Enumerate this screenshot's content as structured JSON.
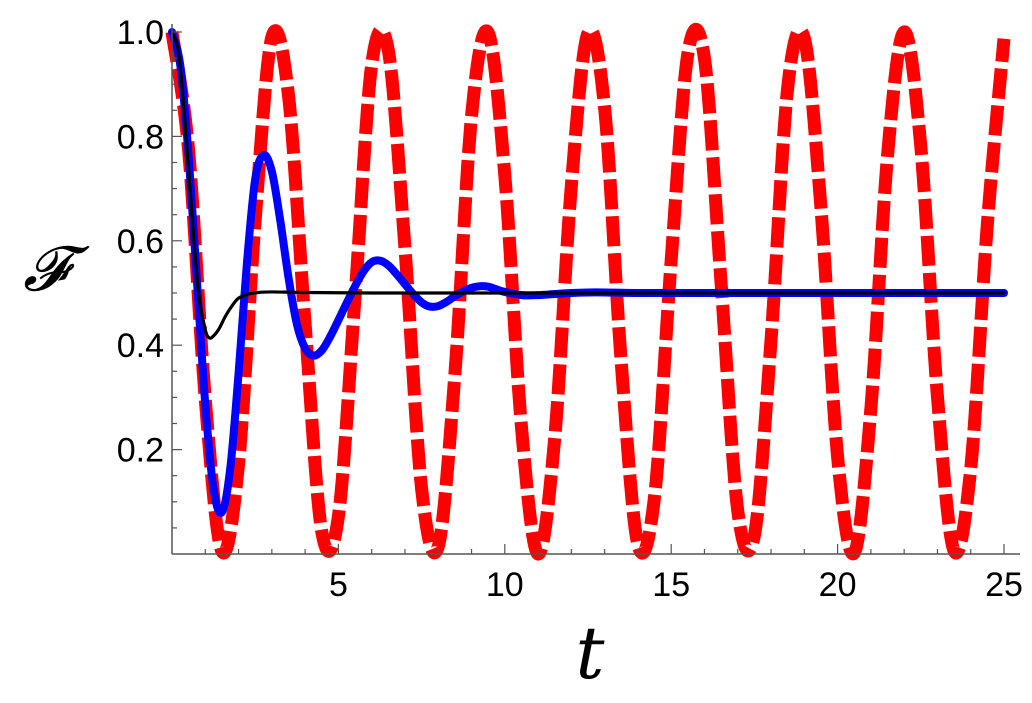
{
  "chart_data": {
    "type": "line",
    "title": "",
    "xlabel": "t",
    "ylabel": "𝓕",
    "xlim": [
      0,
      25
    ],
    "ylim": [
      0,
      1.0
    ],
    "grid": false,
    "legend": "none",
    "x_ticks": [
      {
        "value": 5,
        "label": "5"
      },
      {
        "value": 10,
        "label": "10"
      },
      {
        "value": 15,
        "label": "15"
      },
      {
        "value": 20,
        "label": "20"
      },
      {
        "value": 25,
        "label": "25"
      }
    ],
    "y_ticks": [
      {
        "value": 0.2,
        "label": "0.2"
      },
      {
        "value": 0.4,
        "label": "0.4"
      },
      {
        "value": 0.6,
        "label": "0.6"
      },
      {
        "value": 0.8,
        "label": "0.8"
      },
      {
        "value": 1.0,
        "label": "1.0"
      }
    ],
    "series": [
      {
        "color": "#ff0000",
        "style": "dashed",
        "x": [
          0,
          0.5,
          1,
          1.5,
          2,
          2.5,
          3,
          3.5,
          4,
          4.5,
          5,
          5.5,
          6,
          6.5,
          7,
          7.5,
          8,
          8.5,
          9,
          9.5,
          10,
          10.5,
          11,
          11.5,
          12,
          12.5,
          13,
          13.5,
          14,
          14.5,
          15,
          15.5,
          16,
          16.5,
          17,
          17.5,
          18,
          18.5,
          19,
          19.5,
          20,
          20.5,
          21,
          21.5,
          22,
          22.5,
          23,
          23.5,
          24,
          24.5,
          25
        ],
        "values": [
          1.0,
          0.773,
          0.296,
          0.005,
          0.173,
          0.641,
          0.99,
          0.879,
          0.44,
          0.043,
          0.072,
          0.493,
          0.937,
          0.965,
          0.586,
          0.125,
          0.014,
          0.344,
          0.839,
          0.999,
          0.726,
          0.244,
          0.0,
          0.222,
          0.706,
          0.998,
          0.854,
          0.366,
          0.018,
          0.11,
          0.563,
          0.958,
          0.949,
          0.518,
          0.083,
          0.036,
          0.41,
          0.893,
          0.988,
          0.663,
          0.186,
          0.002,
          0.278,
          0.763,
          1.0,
          0.781,
          0.302,
          0.006,
          0.163,
          0.632,
          0.987
        ]
      },
      {
        "color": "#0000ff",
        "style": "solid",
        "x": [
          0,
          0.25,
          0.5,
          0.75,
          1,
          1.25,
          1.5,
          1.75,
          2,
          2.25,
          2.5,
          2.75,
          3,
          3.25,
          3.5,
          3.75,
          4,
          4.25,
          4.5,
          4.75,
          5,
          5.25,
          5.5,
          5.75,
          6,
          6.25,
          6.5,
          6.75,
          7,
          7.25,
          7.5,
          7.75,
          8,
          8.25,
          8.5,
          8.75,
          9,
          9.25,
          9.5,
          9.75,
          10,
          10.5,
          11,
          11.5,
          12,
          12.5,
          13,
          14,
          16,
          18,
          20,
          22,
          25
        ],
        "values": [
          1.0,
          0.936,
          0.762,
          0.523,
          0.287,
          0.124,
          0.08,
          0.164,
          0.346,
          0.556,
          0.718,
          0.764,
          0.733,
          0.64,
          0.53,
          0.441,
          0.394,
          0.38,
          0.39,
          0.416,
          0.448,
          0.481,
          0.513,
          0.541,
          0.559,
          0.562,
          0.553,
          0.536,
          0.517,
          0.498,
          0.482,
          0.474,
          0.475,
          0.483,
          0.494,
          0.503,
          0.51,
          0.513,
          0.512,
          0.507,
          0.502,
          0.496,
          0.496,
          0.498,
          0.5,
          0.501,
          0.501,
          0.5,
          0.5,
          0.5,
          0.5,
          0.5,
          0.5
        ]
      },
      {
        "color": "#000000",
        "style": "solid",
        "x": [
          0,
          0.2,
          0.4,
          0.6,
          0.8,
          1.0,
          1.1,
          1.2,
          1.4,
          1.6,
          1.8,
          2.0,
          2.3,
          2.6,
          3.0,
          4.0,
          6.0,
          10.0,
          15.0,
          20.0,
          25.0
        ],
        "values": [
          1.0,
          0.96,
          0.82,
          0.65,
          0.5,
          0.43,
          0.415,
          0.415,
          0.43,
          0.455,
          0.475,
          0.49,
          0.498,
          0.501,
          0.502,
          0.501,
          0.5,
          0.5,
          0.5,
          0.5,
          0.5
        ]
      }
    ]
  }
}
